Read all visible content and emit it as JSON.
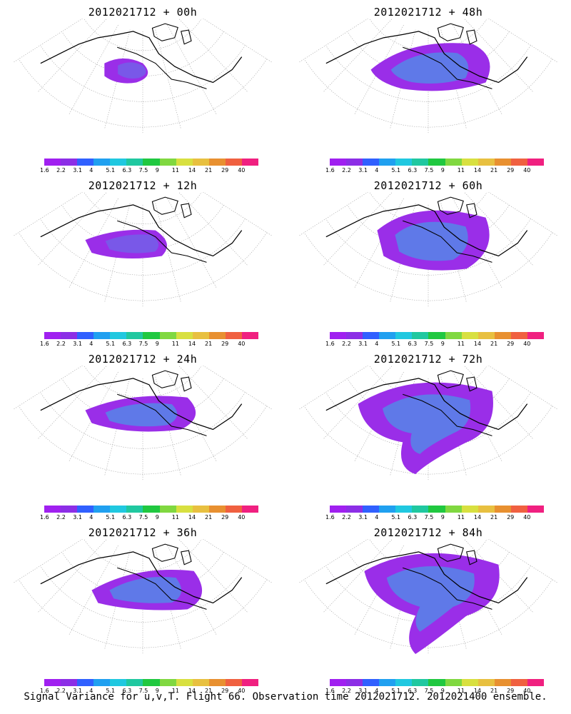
{
  "panels": [
    {
      "title": "2012021712 + 00h"
    },
    {
      "title": "2012021712 + 48h"
    },
    {
      "title": "2012021712 + 12h"
    },
    {
      "title": "2012021712 + 60h"
    },
    {
      "title": "2012021712 + 24h"
    },
    {
      "title": "2012021712 + 72h"
    },
    {
      "title": "2012021712 + 36h"
    },
    {
      "title": "2012021712 + 84h"
    }
  ],
  "colorbar": {
    "colors": [
      "#a020f0",
      "#8c2ee6",
      "#3060ff",
      "#20a0f0",
      "#20c8e0",
      "#20c8a0",
      "#20c840",
      "#80d840",
      "#d8e040",
      "#e8c040",
      "#e89030",
      "#f06040",
      "#f02080"
    ],
    "labels": [
      "1.6",
      "2.2",
      "3.1",
      "4",
      "5.1",
      "6.3",
      "7.5",
      "9",
      "11",
      "14",
      "21",
      "29",
      "40"
    ]
  },
  "caption": "Signal Variance for u,v,T. Flight 66. Observation time 2012021712. 2012021400 ensemble."
}
